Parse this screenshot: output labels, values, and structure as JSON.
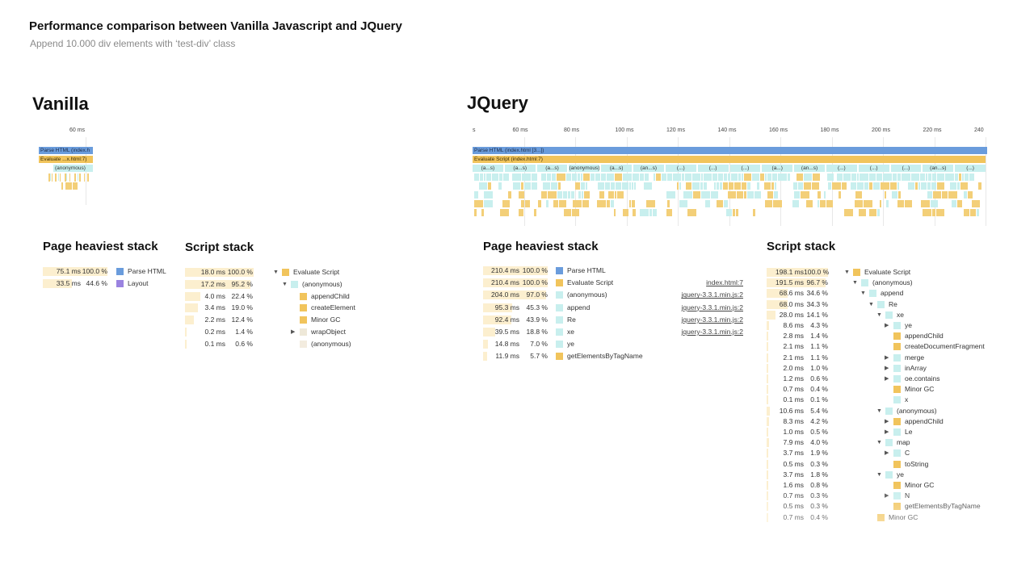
{
  "header": {
    "title": "Performance comparison between Vanilla Javascript and JQuery",
    "subtitle": "Append 10.000 div elements with ‘test-div’ class"
  },
  "vanilla": {
    "heading": "Vanilla",
    "timeline": {
      "tick": "60 ms",
      "bars": [
        "Parse HTML (index.h",
        "Evaluate ...x.html:7)",
        "(anonymous)"
      ]
    },
    "page_heaviest": {
      "title": "Page heaviest stack",
      "rows": [
        {
          "ms": "75.1 ms",
          "pct": "100.0 %",
          "frac": 1.0,
          "color": "#6a9cdc",
          "label": "Parse HTML"
        },
        {
          "ms": "33.5 ms",
          "pct": "44.6 %",
          "frac": 0.446,
          "color": "#9a83e0",
          "label": "Layout"
        }
      ]
    },
    "script_stack": {
      "title": "Script stack",
      "rows": [
        {
          "ms": "18.0 ms",
          "pct": "100.0 %",
          "frac": 1.0,
          "color": "#f1c45c",
          "label": "Evaluate Script",
          "depth": 0,
          "arrow": "down"
        },
        {
          "ms": "17.2 ms",
          "pct": "95.2 %",
          "frac": 0.952,
          "color": "#c8efee",
          "label": "(anonymous)",
          "depth": 1,
          "arrow": "down"
        },
        {
          "ms": "4.0 ms",
          "pct": "22.4 %",
          "frac": 0.224,
          "color": "#f1c45c",
          "label": "appendChild",
          "depth": 2,
          "arrow": ""
        },
        {
          "ms": "3.4 ms",
          "pct": "19.0 %",
          "frac": 0.19,
          "color": "#f1c45c",
          "label": "createElement",
          "depth": 2,
          "arrow": ""
        },
        {
          "ms": "2.2 ms",
          "pct": "12.4 %",
          "frac": 0.124,
          "color": "#f1c45c",
          "label": "Minor GC",
          "depth": 2,
          "arrow": ""
        },
        {
          "ms": "0.2 ms",
          "pct": "1.4 %",
          "frac": 0.014,
          "color": "#eee8d8",
          "label": "wrapObject",
          "depth": 2,
          "arrow": "right"
        },
        {
          "ms": "0.1 ms",
          "pct": "0.6 %",
          "frac": 0.006,
          "color": "#f3ecdf",
          "label": "(anonymous)",
          "depth": 2,
          "arrow": ""
        }
      ]
    }
  },
  "jquery": {
    "heading": "JQuery",
    "timeline": {
      "ticks": [
        "s",
        "60 ms",
        "80 ms",
        "100 ms",
        "120 ms",
        "140 ms",
        "160 ms",
        "180 ms",
        "200 ms",
        "220 ms",
        "240"
      ],
      "bars": [
        "Parse HTML (index.html [3...])",
        "Evaluate Script (index.html:7)"
      ],
      "anon_labels": [
        "(a...s)",
        "(a...s)",
        "(a...s)",
        "(anonymous)",
        "(a...s)",
        "(an...s)",
        "(...)",
        "(...)",
        "(...)",
        "(a...)",
        "(an...s)",
        "(...)",
        "(...)",
        "(...)",
        "(an...s)",
        "(...)"
      ]
    },
    "page_heaviest": {
      "title": "Page heaviest stack",
      "rows": [
        {
          "ms": "210.4 ms",
          "pct": "100.0 %",
          "frac": 1.0,
          "color": "#6a9cdc",
          "label": "Parse HTML",
          "link": ""
        },
        {
          "ms": "210.4 ms",
          "pct": "100.0 %",
          "frac": 1.0,
          "color": "#f1c45c",
          "label": "Evaluate Script",
          "link": "index.html:7"
        },
        {
          "ms": "204.0 ms",
          "pct": "97.0 %",
          "frac": 0.97,
          "color": "#c8efee",
          "label": "(anonymous)",
          "link": "jquery-3.3.1.min.js:2"
        },
        {
          "ms": "95.3 ms",
          "pct": "45.3 %",
          "frac": 0.453,
          "color": "#c8efee",
          "label": "append",
          "link": "jquery-3.3.1.min.js:2"
        },
        {
          "ms": "92.4 ms",
          "pct": "43.9 %",
          "frac": 0.439,
          "color": "#c8efee",
          "label": "Re",
          "link": "jquery-3.3.1.min.js:2"
        },
        {
          "ms": "39.5 ms",
          "pct": "18.8 %",
          "frac": 0.188,
          "color": "#c8efee",
          "label": "xe",
          "link": "jquery-3.3.1.min.js:2"
        },
        {
          "ms": "14.8 ms",
          "pct": "7.0 %",
          "frac": 0.07,
          "color": "#c8efee",
          "label": "ye",
          "link": ""
        },
        {
          "ms": "11.9 ms",
          "pct": "5.7 %",
          "frac": 0.057,
          "color": "#f1c45c",
          "label": "getElementsByTagName",
          "link": ""
        }
      ]
    },
    "script_stack": {
      "title": "Script stack",
      "rows": [
        {
          "ms": "198.1 ms",
          "pct": "100.0 %",
          "frac": 1.0,
          "color": "#f1c45c",
          "label": "Evaluate Script",
          "depth": 0,
          "arrow": "down"
        },
        {
          "ms": "191.5 ms",
          "pct": "96.7 %",
          "frac": 0.967,
          "color": "#c8efee",
          "label": "(anonymous)",
          "depth": 1,
          "arrow": "down"
        },
        {
          "ms": "68.6 ms",
          "pct": "34.6 %",
          "frac": 0.346,
          "color": "#c8efee",
          "label": "append",
          "depth": 2,
          "arrow": "down"
        },
        {
          "ms": "68.0 ms",
          "pct": "34.3 %",
          "frac": 0.343,
          "color": "#c8efee",
          "label": "Re",
          "depth": 3,
          "arrow": "down"
        },
        {
          "ms": "28.0 ms",
          "pct": "14.1 %",
          "frac": 0.141,
          "color": "#c8efee",
          "label": "xe",
          "depth": 4,
          "arrow": "down"
        },
        {
          "ms": "8.6 ms",
          "pct": "4.3 %",
          "frac": 0.043,
          "color": "#c8efee",
          "label": "ye",
          "depth": 5,
          "arrow": "right"
        },
        {
          "ms": "2.8 ms",
          "pct": "1.4 %",
          "frac": 0.014,
          "color": "#f1c45c",
          "label": "appendChild",
          "depth": 5,
          "arrow": ""
        },
        {
          "ms": "2.1 ms",
          "pct": "1.1 %",
          "frac": 0.011,
          "color": "#f1c45c",
          "label": "createDocumentFragment",
          "depth": 5,
          "arrow": ""
        },
        {
          "ms": "2.1 ms",
          "pct": "1.1 %",
          "frac": 0.011,
          "color": "#c8efee",
          "label": "merge",
          "depth": 5,
          "arrow": "right"
        },
        {
          "ms": "2.0 ms",
          "pct": "1.0 %",
          "frac": 0.01,
          "color": "#c8efee",
          "label": "inArray",
          "depth": 5,
          "arrow": "right"
        },
        {
          "ms": "1.2 ms",
          "pct": "0.6 %",
          "frac": 0.006,
          "color": "#c8efee",
          "label": "oe.contains",
          "depth": 5,
          "arrow": "right"
        },
        {
          "ms": "0.7 ms",
          "pct": "0.4 %",
          "frac": 0.004,
          "color": "#f1c45c",
          "label": "Minor GC",
          "depth": 5,
          "arrow": ""
        },
        {
          "ms": "0.1 ms",
          "pct": "0.1 %",
          "frac": 0.001,
          "color": "#c8efee",
          "label": "x",
          "depth": 5,
          "arrow": ""
        },
        {
          "ms": "10.6 ms",
          "pct": "5.4 %",
          "frac": 0.054,
          "color": "#c8efee",
          "label": "(anonymous)",
          "depth": 4,
          "arrow": "down"
        },
        {
          "ms": "8.3 ms",
          "pct": "4.2 %",
          "frac": 0.042,
          "color": "#f1c45c",
          "label": "appendChild",
          "depth": 5,
          "arrow": "right"
        },
        {
          "ms": "1.0 ms",
          "pct": "0.5 %",
          "frac": 0.005,
          "color": "#c8efee",
          "label": "Le",
          "depth": 5,
          "arrow": "right"
        },
        {
          "ms": "7.9 ms",
          "pct": "4.0 %",
          "frac": 0.04,
          "color": "#c8efee",
          "label": "map",
          "depth": 4,
          "arrow": "down"
        },
        {
          "ms": "3.7 ms",
          "pct": "1.9 %",
          "frac": 0.019,
          "color": "#c8efee",
          "label": "C",
          "depth": 5,
          "arrow": "right"
        },
        {
          "ms": "0.5 ms",
          "pct": "0.3 %",
          "frac": 0.003,
          "color": "#f1c45c",
          "label": "toString",
          "depth": 5,
          "arrow": ""
        },
        {
          "ms": "3.7 ms",
          "pct": "1.8 %",
          "frac": 0.018,
          "color": "#c8efee",
          "label": "ye",
          "depth": 4,
          "arrow": "down"
        },
        {
          "ms": "1.6 ms",
          "pct": "0.8 %",
          "frac": 0.008,
          "color": "#f1c45c",
          "label": "Minor GC",
          "depth": 5,
          "arrow": ""
        },
        {
          "ms": "0.7 ms",
          "pct": "0.3 %",
          "frac": 0.003,
          "color": "#c8efee",
          "label": "N",
          "depth": 5,
          "arrow": "right"
        },
        {
          "ms": "0.5 ms",
          "pct": "0.3 %",
          "frac": 0.003,
          "color": "#f1c45c",
          "label": "getElementsByTagName",
          "depth": 5,
          "arrow": ""
        },
        {
          "ms": "0.7 ms",
          "pct": "0.4 %",
          "frac": 0.004,
          "color": "#f1c45c",
          "label": "Minor GC",
          "depth": 3,
          "arrow": ""
        }
      ]
    }
  },
  "colors": {
    "parse_html": "#6a9cdc",
    "evaluate_script": "#f1c45c",
    "anonymous": "#c8efee",
    "layout": "#9a83e0",
    "value_bar": "#fcefcf"
  }
}
